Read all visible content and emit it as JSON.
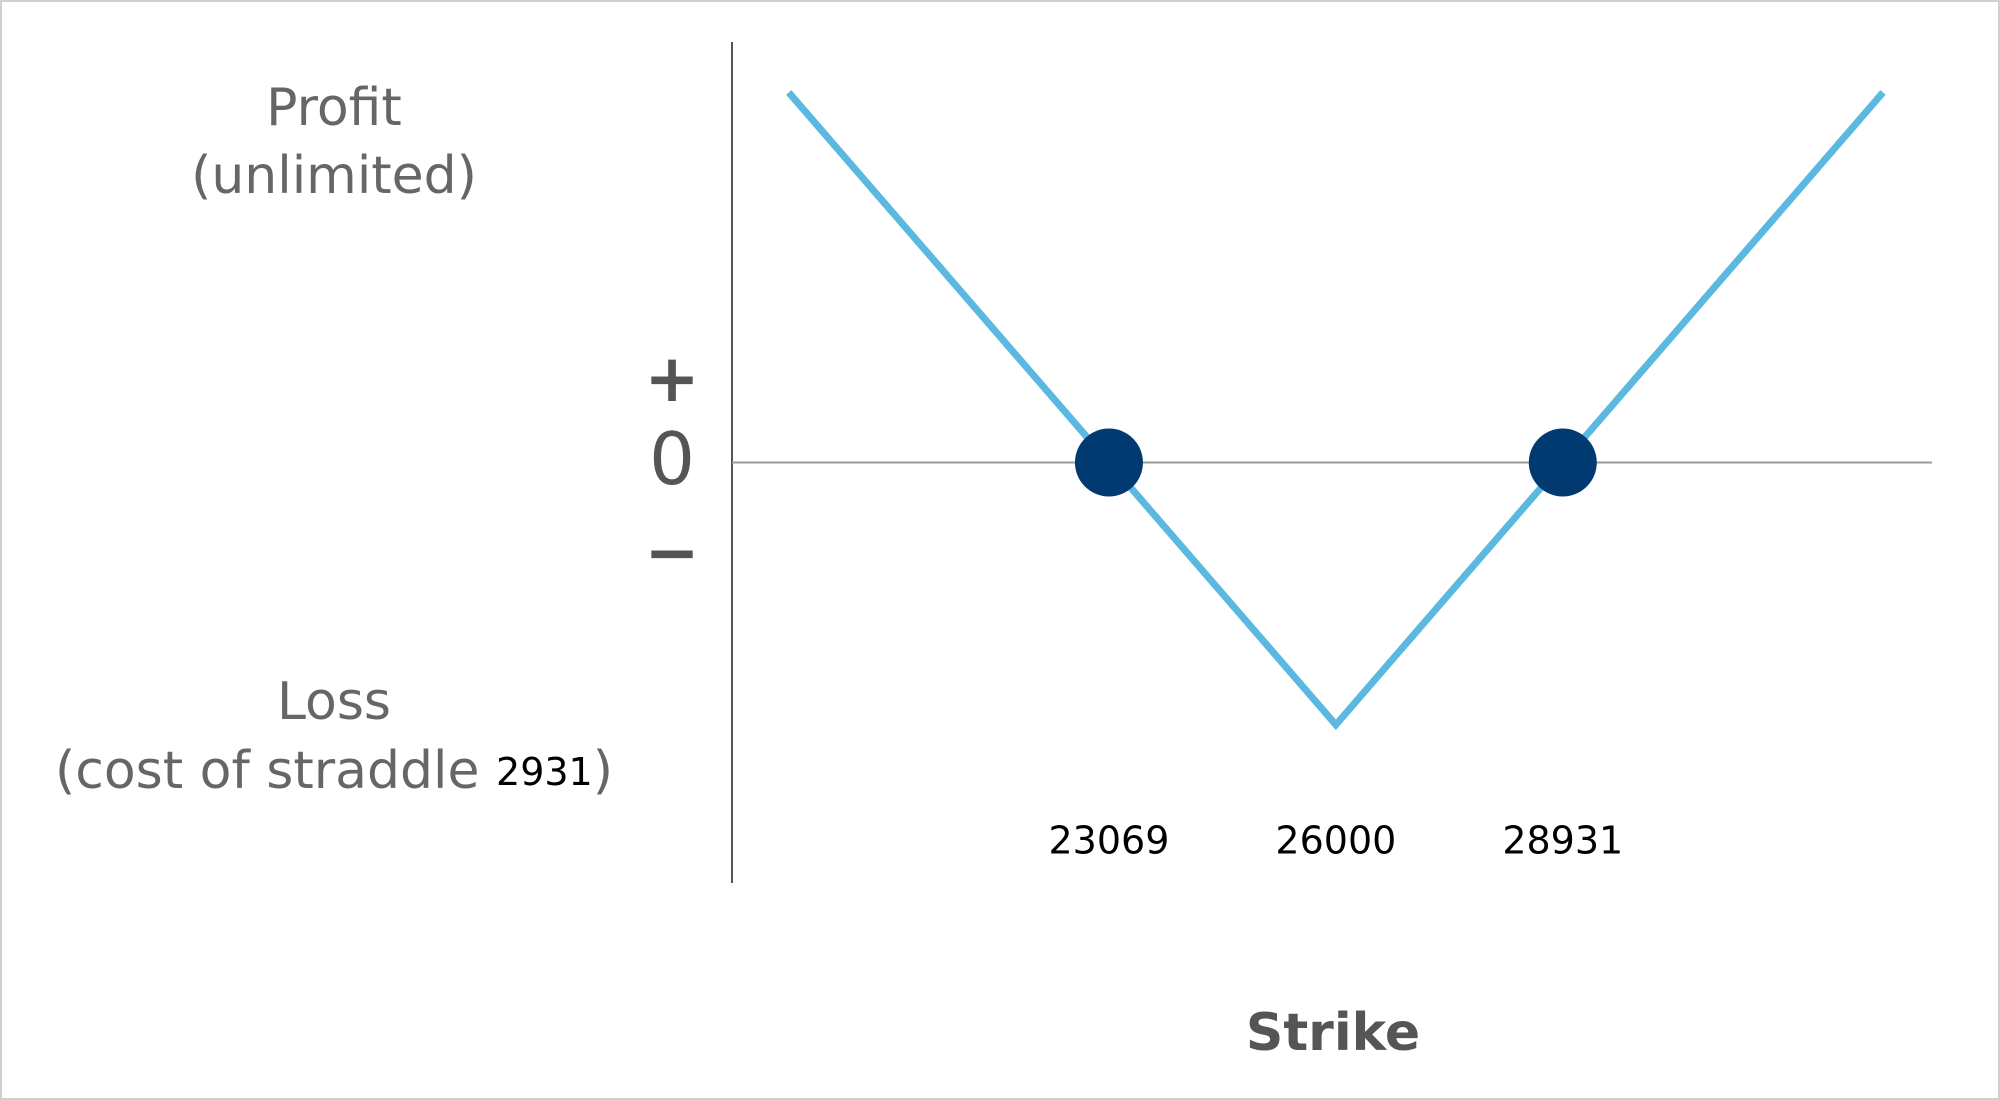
{
  "chart_data": {
    "type": "line",
    "x": [
      18933,
      26000,
      33067
    ],
    "values": [
      4136,
      -2931,
      4136
    ],
    "color": "#5bb8e0",
    "points": {
      "x": [
        23069,
        28931
      ],
      "values": [
        0,
        0
      ],
      "color": "#003a70"
    },
    "xlim": [
      18200,
      33700
    ],
    "ylim": [
      -4700,
      4700
    ],
    "xticks": [
      23069,
      26000,
      28931
    ],
    "yticks": [
      0
    ],
    "xlabel": "Strike",
    "plus_label": "+",
    "minus_label": "−",
    "profit_label": [
      "Profit",
      "(unlimited)"
    ],
    "loss_label": [
      "Loss",
      "(cost of straddle ",
      ")"
    ],
    "straddle_cost": 2931
  }
}
